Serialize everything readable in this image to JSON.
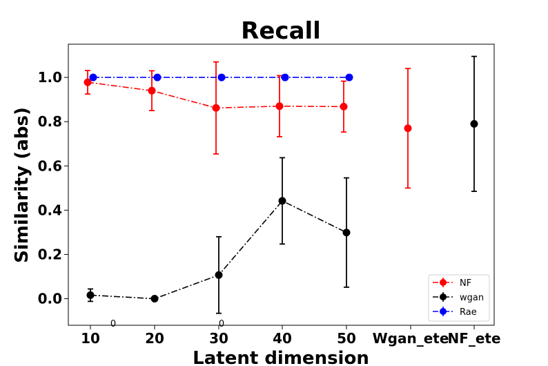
{
  "chart_data": {
    "type": "line",
    "title": "Recall",
    "xlabel": "Latent dimension",
    "ylabel": "Similarity (abs)",
    "categories": [
      "10",
      "20",
      "30",
      "40",
      "50",
      "Wgan_ete",
      "NF_ete"
    ],
    "ylim": [
      -0.12,
      1.15
    ],
    "yticks": [
      "0.0",
      "0.2",
      "0.4",
      "0.6",
      "0.8",
      "1.0"
    ],
    "grid": false,
    "legend_position": "lower-right",
    "series": [
      {
        "name": "NF",
        "color": "#ff0000",
        "linestyle": "dashdot",
        "points": [
          {
            "x": "10",
            "y": 0.978,
            "err": 0.053
          },
          {
            "x": "20",
            "y": 0.94,
            "err": 0.09
          },
          {
            "x": "30",
            "y": 0.862,
            "err": 0.208
          },
          {
            "x": "40",
            "y": 0.87,
            "err": 0.138
          },
          {
            "x": "50",
            "y": 0.868,
            "err": 0.115
          },
          {
            "x": "Wgan_ete",
            "y": 0.77,
            "err": 0.27,
            "connected": false
          }
        ]
      },
      {
        "name": "wgan",
        "color": "#000000",
        "linestyle": "dashdot",
        "points": [
          {
            "x": "10",
            "y": 0.016,
            "err": 0.028
          },
          {
            "x": "20",
            "y": 0.0,
            "err": 0.0
          },
          {
            "x": "30",
            "y": 0.107,
            "err": 0.173
          },
          {
            "x": "40",
            "y": 0.442,
            "err": 0.195
          },
          {
            "x": "50",
            "y": 0.299,
            "err": 0.247
          },
          {
            "x": "NF_ete",
            "y": 0.79,
            "err": 0.305,
            "connected": false
          }
        ]
      },
      {
        "name": "Rae",
        "color": "#0000ff",
        "linestyle": "dashdot",
        "points": [
          {
            "x": "10",
            "y": 1.0,
            "err": 0.0
          },
          {
            "x": "20",
            "y": 1.0,
            "err": 0.0
          },
          {
            "x": "30",
            "y": 1.0,
            "err": 0.0
          },
          {
            "x": "40",
            "y": 1.0,
            "err": 0.0
          },
          {
            "x": "50",
            "y": 1.0,
            "err": 0.0
          }
        ]
      }
    ],
    "annotations": [
      {
        "text": "0",
        "x": "10",
        "y": -0.11
      },
      {
        "text": "0",
        "x": "30",
        "y": -0.11
      }
    ]
  }
}
